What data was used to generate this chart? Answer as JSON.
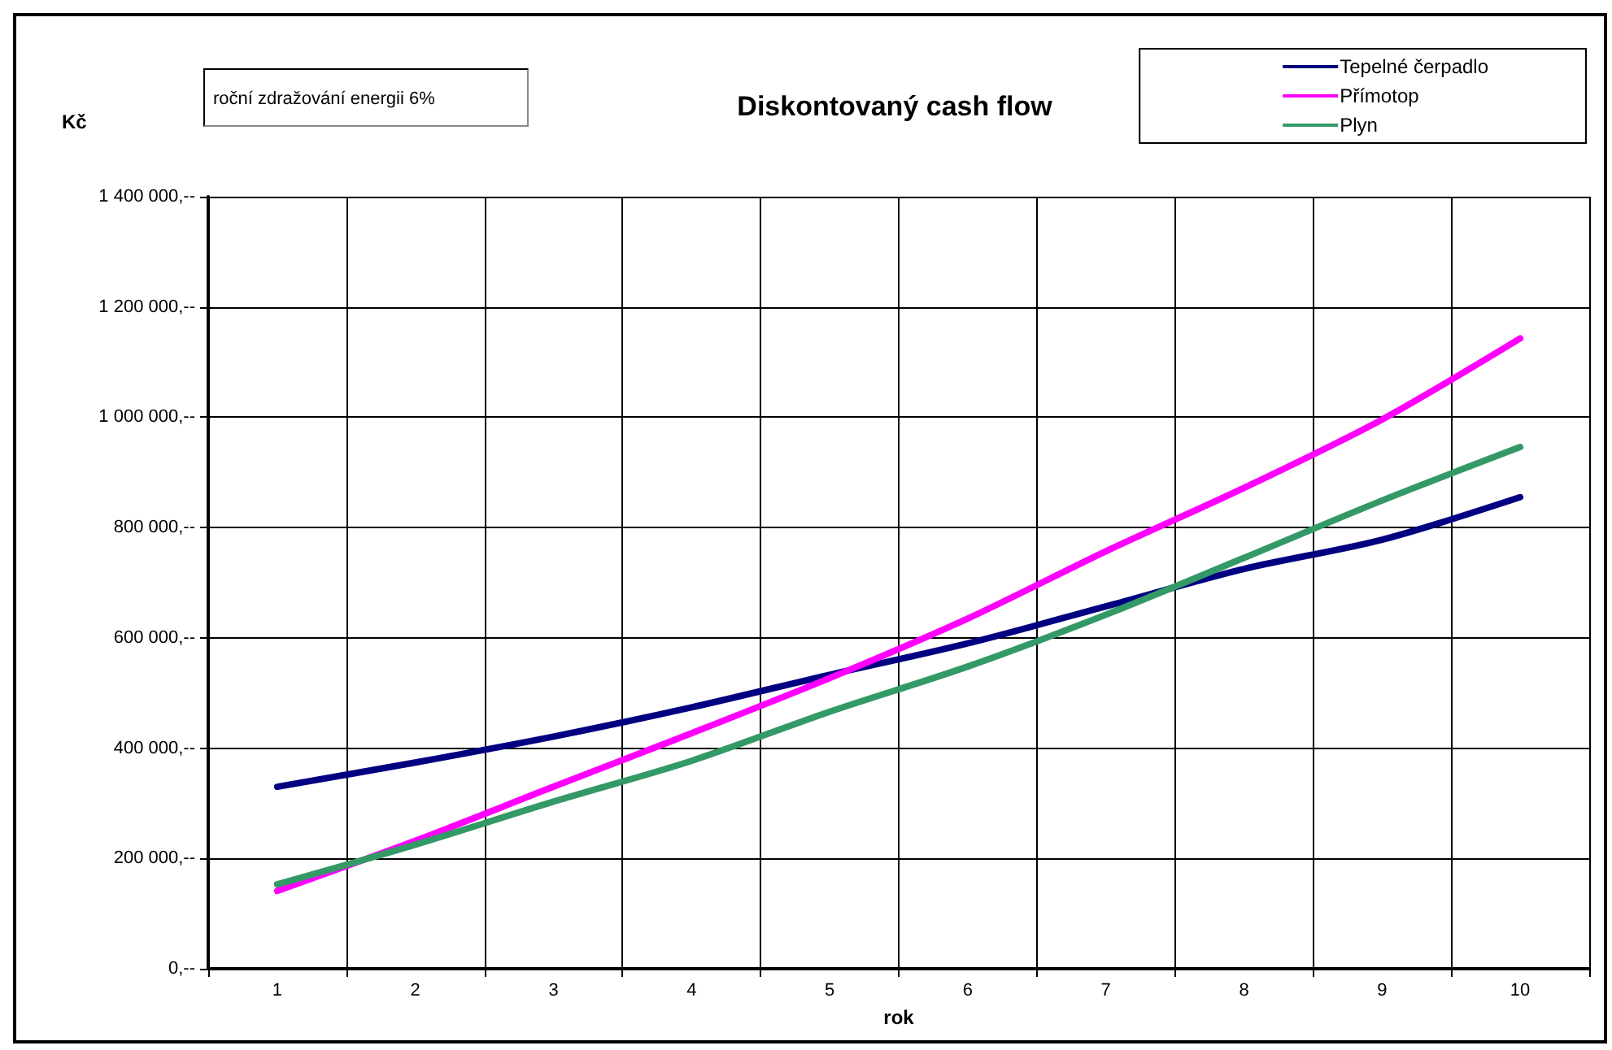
{
  "chart_data": {
    "type": "line",
    "title": "Diskontovaný cash flow",
    "xlabel": "rok",
    "ylabel": "Kč",
    "annotations": [
      "roční zdražování energii 6%"
    ],
    "categories": [
      "1",
      "2",
      "3",
      "4",
      "5",
      "6",
      "7",
      "8",
      "9",
      "10"
    ],
    "series": [
      {
        "name": "Tepelné čerpadlo",
        "color": "#000080",
        "values": [
          330000,
          374000,
          421000,
          474000,
          533000,
          590000,
          657000,
          725000,
          778000,
          855000
        ]
      },
      {
        "name": "Přímotop",
        "color": "#ff00ff",
        "values": [
          141000,
          232000,
          330000,
          427000,
          527000,
          635000,
          757000,
          872000,
          996000,
          1143000
        ]
      },
      {
        "name": "Plyn",
        "color": "#339966",
        "values": [
          153000,
          225000,
          303000,
          377000,
          466000,
          548000,
          642000,
          745000,
          849000,
          946000
        ]
      }
    ],
    "ylim": [
      0,
      1400000
    ],
    "yticks": [
      {
        "value": 0,
        "label": "0,--"
      },
      {
        "value": 200000,
        "label": "200 000,--"
      },
      {
        "value": 400000,
        "label": "400 000,--"
      },
      {
        "value": 600000,
        "label": "600 000,--"
      },
      {
        "value": 800000,
        "label": "800 000,--"
      },
      {
        "value": 1000000,
        "label": "1 000 000,--"
      },
      {
        "value": 1200000,
        "label": "1 200 000,--"
      },
      {
        "value": 1400000,
        "label": "1 400 000,--"
      }
    ],
    "grid": true,
    "legend": "top right",
    "marker": "none",
    "line_style": "solid"
  }
}
